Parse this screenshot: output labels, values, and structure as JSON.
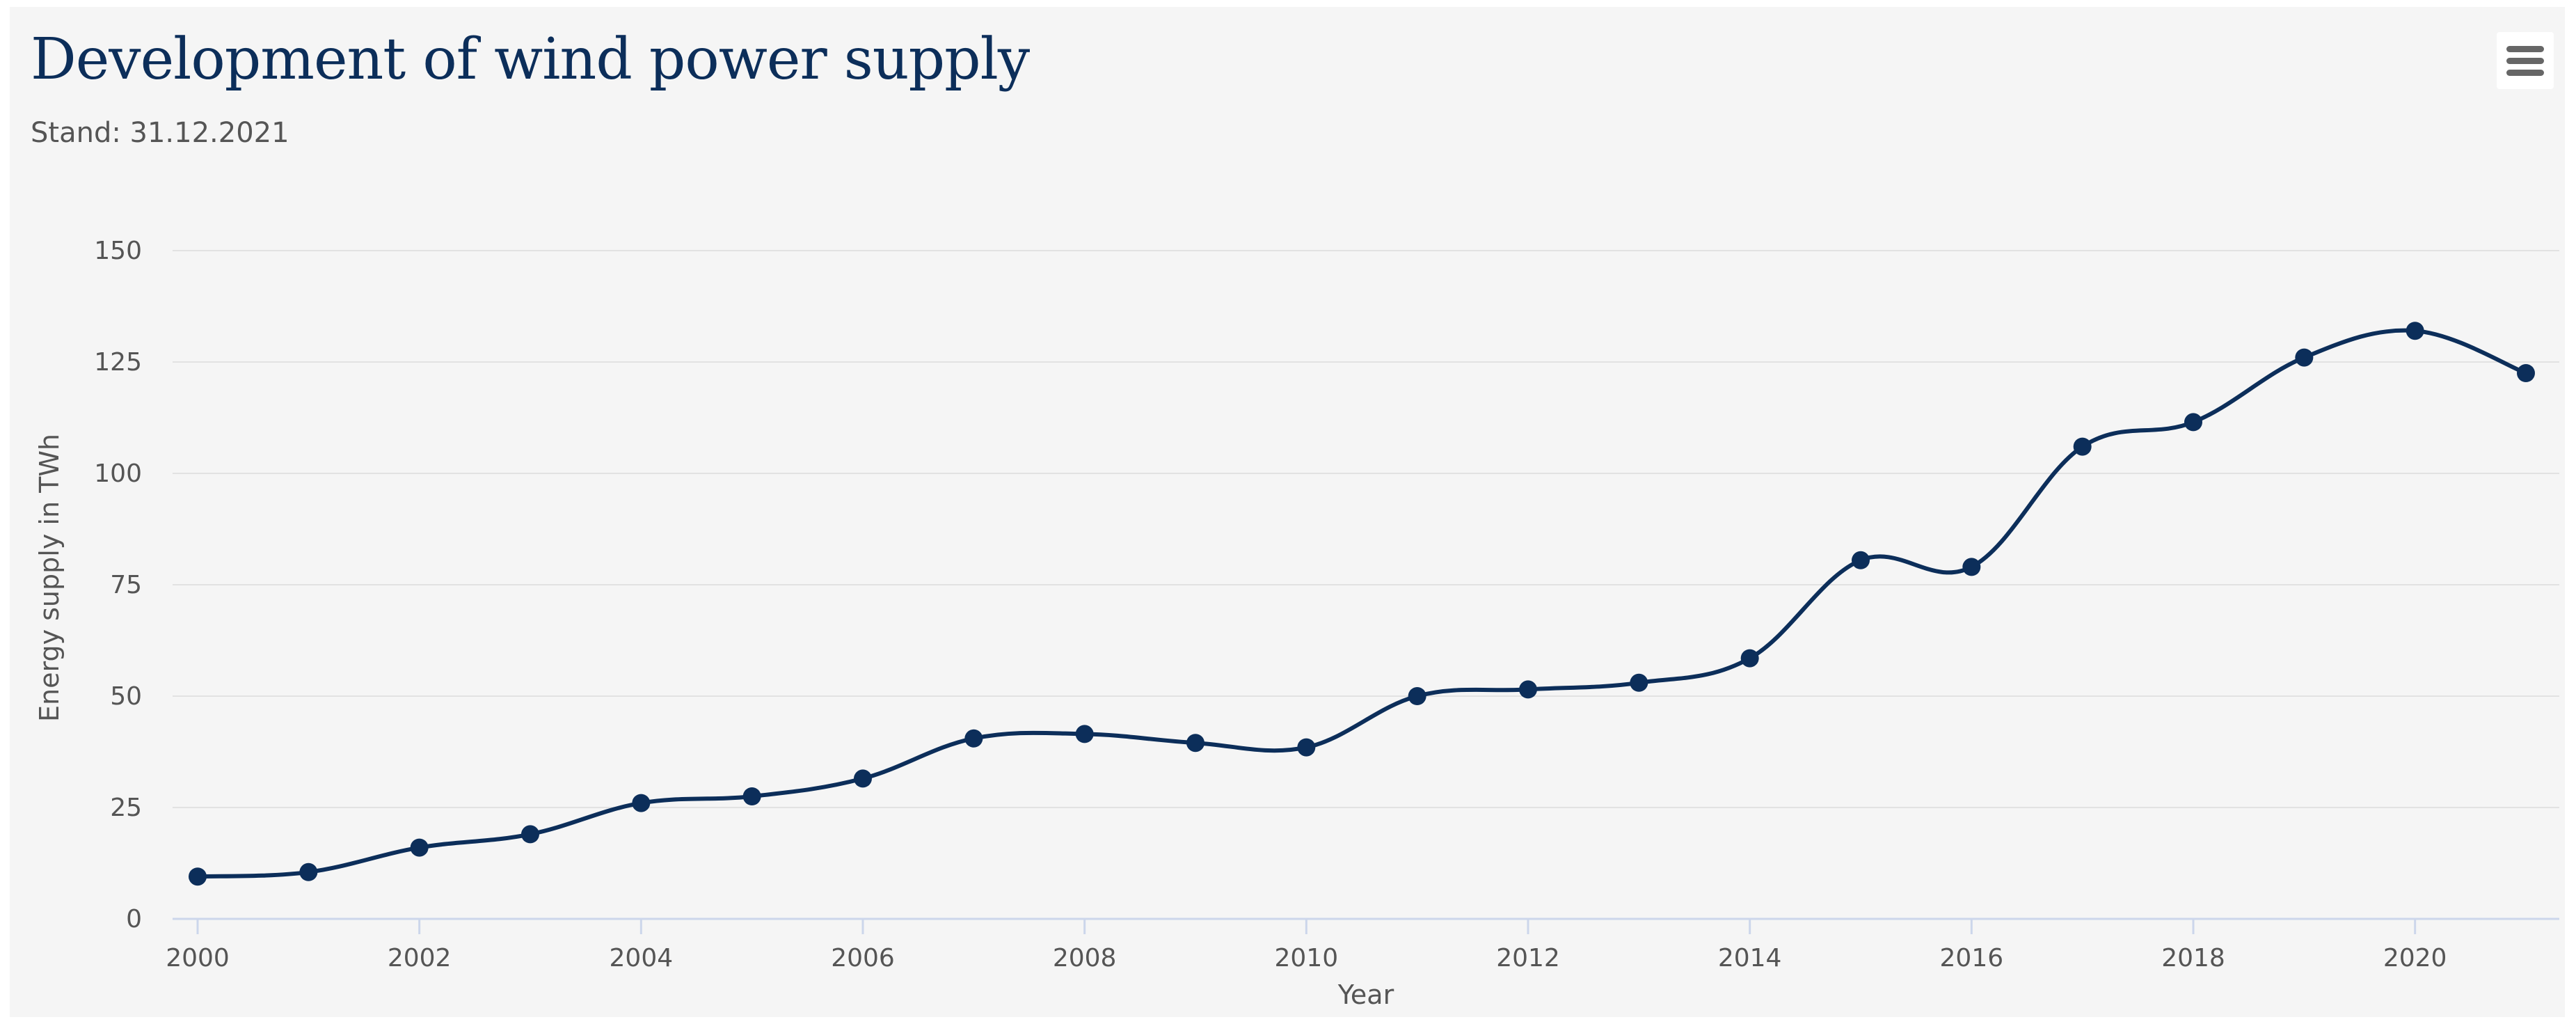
{
  "header": {
    "title": "Development of wind power supply",
    "subtitle": "Stand: 31.12.2021"
  },
  "menu": {
    "icon": "hamburger-menu-icon"
  },
  "colors": {
    "series": "#0c2e5a",
    "grid": "#e2e2e2",
    "axis": "#ccd6eb",
    "text": "#555555"
  },
  "chart_data": {
    "type": "line",
    "smooth": true,
    "xlabel": "Year",
    "ylabel": "Energy supply in TWh",
    "xlim": [
      2000,
      2021
    ],
    "ylim": [
      0,
      150
    ],
    "x_ticks": [
      2000,
      2002,
      2004,
      2006,
      2008,
      2010,
      2012,
      2014,
      2016,
      2018,
      2020
    ],
    "y_ticks": [
      0,
      25,
      50,
      75,
      100,
      125,
      150
    ],
    "grid": true,
    "legend": "none",
    "series": [
      {
        "x": [
          2000,
          2001,
          2002,
          2003,
          2004,
          2005,
          2006,
          2007,
          2008,
          2009,
          2010,
          2011,
          2012,
          2013,
          2014,
          2015,
          2016,
          2017,
          2018,
          2019,
          2020,
          2021
        ],
        "values": [
          9.5,
          10.5,
          16,
          19,
          26,
          27.5,
          31.5,
          40.5,
          41.5,
          39.5,
          38.5,
          50,
          51.5,
          53,
          58.5,
          80.5,
          79,
          106,
          111.5,
          126,
          132,
          122.5
        ]
      }
    ]
  }
}
